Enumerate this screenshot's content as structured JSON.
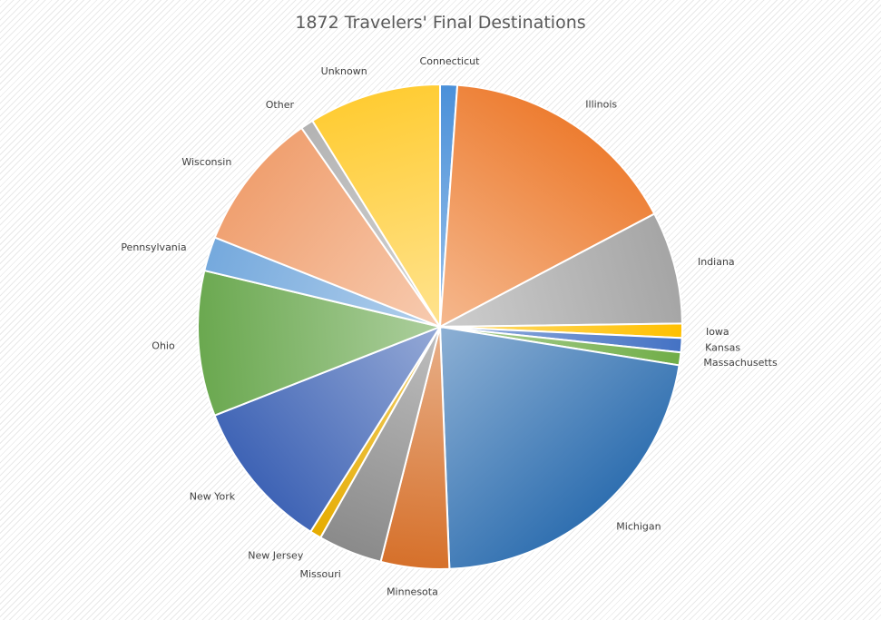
{
  "chart_data": {
    "type": "pie",
    "title": "1872 Travelers' Final Destinations",
    "categories": [
      "Connecticut",
      "Illinois",
      "Indiana",
      "Iowa",
      "Kansas",
      "Massachusetts",
      "Michigan",
      "Minnesota",
      "Missouri",
      "New Jersey",
      "New York",
      "Ohio",
      "Pennsylvania",
      "Wisconsin",
      "Other",
      "Unknown"
    ],
    "values": [
      1.2,
      17.0,
      7.9,
      1.0,
      1.0,
      0.9,
      23.0,
      4.8,
      4.5,
      0.8,
      10.6,
      10.2,
      2.4,
      9.8,
      0.9,
      9.3
    ],
    "colors": [
      "#4a90d9",
      "#ed7d31",
      "#a5a5a5",
      "#ffc000",
      "#4472c4",
      "#70ad47",
      "#2f6fb0",
      "#d6702a",
      "#8a8a8a",
      "#e6ac00",
      "#3e63b5",
      "#6aa84f",
      "#75a9dd",
      "#f0a070",
      "#b3b3b3",
      "#ffcc33"
    ],
    "legend": "none",
    "start_angle_deg": 0,
    "direction": "clockwise"
  }
}
